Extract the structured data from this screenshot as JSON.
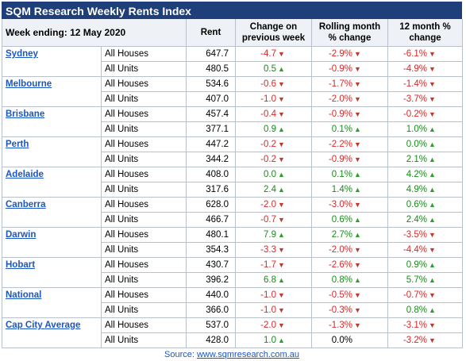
{
  "title": "SQM Research Weekly Rents Index",
  "header": {
    "week_label": "Week ending: 12 May 2020",
    "rent": "Rent",
    "col1": "Change on previous week",
    "col2": "Rolling month % change",
    "col3": "12 month % change"
  },
  "colors": {
    "title_bg": "#1f3f7a",
    "link": "#1a56c4",
    "negative": "#d42b2b",
    "positive": "#1a8a1a"
  },
  "rows": [
    {
      "city": "Sydney",
      "type": "All Houses",
      "rent": "647.7",
      "c1": "-4.7",
      "d1": "down",
      "c2": "-2.9%",
      "d2": "down",
      "c3": "-6.1%",
      "d3": "down"
    },
    {
      "city": "",
      "type": "All Units",
      "rent": "480.5",
      "c1": "0.5",
      "d1": "up",
      "c2": "-0.9%",
      "d2": "down",
      "c3": "-4.9%",
      "d3": "down"
    },
    {
      "city": "Melbourne",
      "type": "All Houses",
      "rent": "534.6",
      "c1": "-0.6",
      "d1": "down",
      "c2": "-1.7%",
      "d2": "down",
      "c3": "-1.4%",
      "d3": "down"
    },
    {
      "city": "",
      "type": "All Units",
      "rent": "407.0",
      "c1": "-1.0",
      "d1": "down",
      "c2": "-2.0%",
      "d2": "down",
      "c3": "-3.7%",
      "d3": "down"
    },
    {
      "city": "Brisbane",
      "type": "All Houses",
      "rent": "457.4",
      "c1": "-0.4",
      "d1": "down",
      "c2": "-0.9%",
      "d2": "down",
      "c3": "-0.2%",
      "d3": "down"
    },
    {
      "city": "",
      "type": "All Units",
      "rent": "377.1",
      "c1": "0.9",
      "d1": "up",
      "c2": "0.1%",
      "d2": "up",
      "c3": "1.0%",
      "d3": "up"
    },
    {
      "city": "Perth",
      "type": "All Houses",
      "rent": "447.2",
      "c1": "-0.2",
      "d1": "down",
      "c2": "-2.2%",
      "d2": "down",
      "c3": "0.0%",
      "d3": "up"
    },
    {
      "city": "",
      "type": "All Units",
      "rent": "344.2",
      "c1": "-0.2",
      "d1": "down",
      "c2": "-0.9%",
      "d2": "down",
      "c3": "2.1%",
      "d3": "up"
    },
    {
      "city": "Adelaide",
      "type": "All Houses",
      "rent": "408.0",
      "c1": "0.0",
      "d1": "up",
      "c2": "0.1%",
      "d2": "up",
      "c3": "4.2%",
      "d3": "up"
    },
    {
      "city": "",
      "type": "All Units",
      "rent": "317.6",
      "c1": "2.4",
      "d1": "up",
      "c2": "1.4%",
      "d2": "up",
      "c3": "4.9%",
      "d3": "up"
    },
    {
      "city": "Canberra",
      "type": "All Houses",
      "rent": "628.0",
      "c1": "-2.0",
      "d1": "down",
      "c2": "-3.0%",
      "d2": "down",
      "c3": "0.6%",
      "d3": "up"
    },
    {
      "city": "",
      "type": "All Units",
      "rent": "466.7",
      "c1": "-0.7",
      "d1": "down",
      "c2": "0.6%",
      "d2": "up",
      "c3": "2.4%",
      "d3": "up"
    },
    {
      "city": "Darwin",
      "type": "All Houses",
      "rent": "480.1",
      "c1": "7.9",
      "d1": "up",
      "c2": "2.7%",
      "d2": "up",
      "c3": "-3.5%",
      "d3": "down"
    },
    {
      "city": "",
      "type": "All Units",
      "rent": "354.3",
      "c1": "-3.3",
      "d1": "down",
      "c2": "-2.0%",
      "d2": "down",
      "c3": "-4.4%",
      "d3": "down"
    },
    {
      "city": "Hobart",
      "type": "All Houses",
      "rent": "430.7",
      "c1": "-1.7",
      "d1": "down",
      "c2": "-2.6%",
      "d2": "down",
      "c3": "0.9%",
      "d3": "up"
    },
    {
      "city": "",
      "type": "All Units",
      "rent": "396.2",
      "c1": "6.8",
      "d1": "up",
      "c2": "0.8%",
      "d2": "up",
      "c3": "5.7%",
      "d3": "up"
    },
    {
      "city": "National",
      "type": "All Houses",
      "rent": "440.0",
      "c1": "-1.0",
      "d1": "down",
      "c2": "-0.5%",
      "d2": "down",
      "c3": "-0.7%",
      "d3": "down"
    },
    {
      "city": "",
      "type": "All Units",
      "rent": "366.0",
      "c1": "-1.0",
      "d1": "down",
      "c2": "-0.3%",
      "d2": "down",
      "c3": "0.8%",
      "d3": "up"
    },
    {
      "city": "Cap City Average",
      "type": "All Houses",
      "rent": "537.0",
      "c1": "-2.0",
      "d1": "down",
      "c2": "-1.3%",
      "d2": "down",
      "c3": "-3.1%",
      "d3": "down"
    },
    {
      "city": "",
      "type": "All Units",
      "rent": "428.0",
      "c1": "1.0",
      "d1": "up",
      "c2": "0.0%",
      "d2": "",
      "c3": "-3.2%",
      "d3": "down"
    }
  ],
  "source_prefix": "Source: ",
  "source_link": "www.sqmresearch.com.au"
}
